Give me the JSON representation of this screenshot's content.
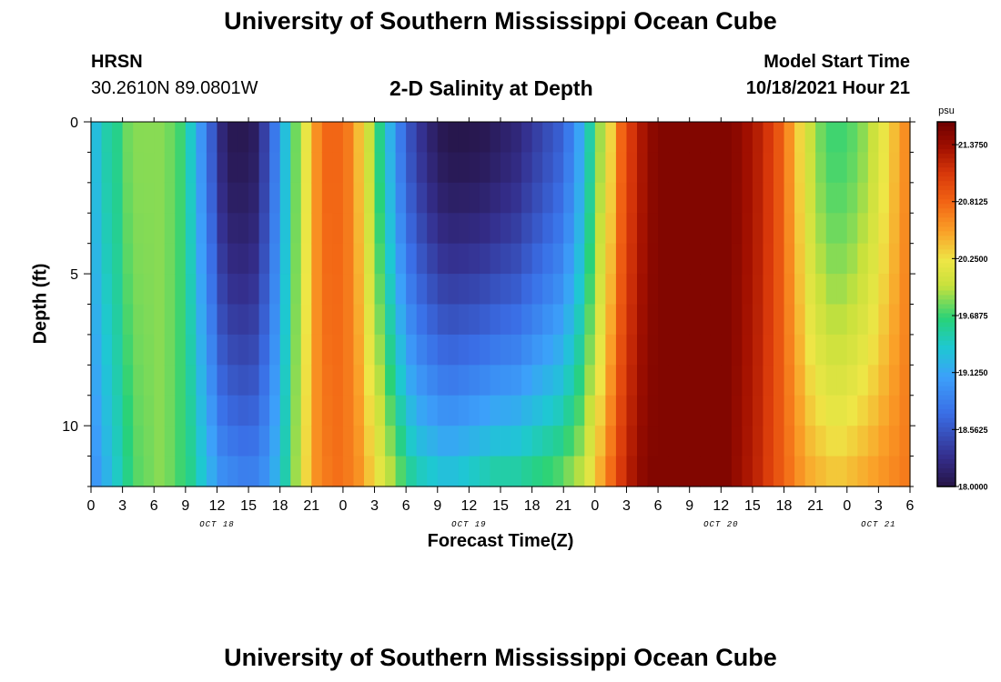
{
  "page": {
    "title": "University of Southern Mississippi Ocean Cube",
    "title_repeat": "University of Southern Mississippi Ocean Cube",
    "station": "HRSN",
    "coordinates": "30.2610N  89.0801W",
    "subtitle": "2-D Salinity at Depth",
    "model_start_label": "Model Start Time",
    "model_start_value": "10/18/2021 Hour 21"
  },
  "chart_data": {
    "type": "heatmap",
    "title": "2-D Salinity at Depth",
    "xlabel": "Forecast Time(Z)",
    "ylabel": "Depth (ft)",
    "x_ticks": [
      "0",
      "3",
      "6",
      "9",
      "12",
      "15",
      "18",
      "21",
      "0",
      "3",
      "6",
      "9",
      "12",
      "15",
      "18",
      "21",
      "0",
      "3",
      "6",
      "9",
      "12",
      "15",
      "18",
      "21",
      "0",
      "3",
      "6"
    ],
    "x_range_hours": [
      0,
      78
    ],
    "date_labels": [
      {
        "label": "OCT 18",
        "hour": 12
      },
      {
        "label": "OCT 19",
        "hour": 36
      },
      {
        "label": "OCT 20",
        "hour": 60
      },
      {
        "label": "OCT 21",
        "hour": 75
      }
    ],
    "y_ticks": [
      "0",
      "5",
      "10"
    ],
    "y_range_ft": [
      0,
      12
    ],
    "colorbar": {
      "unit": "psu",
      "min": 18.0,
      "max": 21.6,
      "tick_labels": [
        "21.3750",
        "20.8125",
        "20.2500",
        "19.6875",
        "19.1250",
        "18.5625",
        "18.0000"
      ],
      "tick_values": [
        21.375,
        20.8125,
        20.25,
        19.6875,
        19.125,
        18.5625,
        18.0
      ]
    },
    "profile": {
      "hours": [
        0,
        1,
        2,
        3,
        4,
        5,
        6,
        7,
        8,
        9,
        10,
        11,
        12,
        13,
        14,
        15,
        16,
        17,
        18,
        19,
        20,
        21,
        22,
        23,
        24,
        25,
        26,
        27,
        28,
        29,
        30,
        31,
        32,
        33,
        34,
        35,
        36,
        37,
        38,
        39,
        40,
        41,
        42,
        43,
        44,
        45,
        46,
        47,
        48,
        49,
        50,
        51,
        52,
        53,
        54,
        55,
        56,
        57,
        58,
        59,
        60,
        61,
        62,
        63,
        64,
        65,
        66,
        67,
        68,
        69,
        70,
        71,
        72,
        73,
        74,
        75,
        76,
        77,
        78
      ],
      "surface_psu": [
        19.3,
        19.5,
        19.6,
        19.8,
        19.85,
        19.85,
        19.85,
        19.8,
        19.7,
        19.4,
        19.0,
        18.6,
        18.2,
        18.05,
        18.05,
        18.1,
        18.4,
        18.8,
        19.3,
        19.8,
        20.2,
        20.6,
        20.8,
        20.8,
        20.7,
        20.4,
        20.0,
        19.6,
        19.2,
        18.8,
        18.5,
        18.3,
        18.15,
        18.05,
        18.02,
        18.02,
        18.03,
        18.05,
        18.1,
        18.15,
        18.2,
        18.3,
        18.4,
        18.5,
        18.6,
        18.8,
        19.1,
        19.5,
        19.9,
        20.3,
        20.8,
        21.1,
        21.3,
        21.45,
        21.5,
        21.5,
        21.5,
        21.5,
        21.5,
        21.5,
        21.5,
        21.45,
        21.35,
        21.25,
        21.1,
        20.9,
        20.6,
        20.3,
        20.0,
        19.8,
        19.7,
        19.7,
        19.75,
        19.85,
        20.0,
        20.2,
        20.4,
        20.6,
        20.7
      ],
      "bottom_psu": [
        19.0,
        19.2,
        19.4,
        19.6,
        19.75,
        19.8,
        19.85,
        19.8,
        19.7,
        19.6,
        19.4,
        19.2,
        19.0,
        18.95,
        18.9,
        18.9,
        19.0,
        19.2,
        19.5,
        19.9,
        20.3,
        20.6,
        20.7,
        20.75,
        20.7,
        20.6,
        20.4,
        20.2,
        20.0,
        19.8,
        19.6,
        19.5,
        19.45,
        19.4,
        19.4,
        19.45,
        19.5,
        19.55,
        19.6,
        19.6,
        19.6,
        19.65,
        19.7,
        19.75,
        19.8,
        19.9,
        20.0,
        20.2,
        20.5,
        20.8,
        21.1,
        21.3,
        21.45,
        21.5,
        21.5,
        21.5,
        21.5,
        21.5,
        21.5,
        21.5,
        21.5,
        21.4,
        21.3,
        21.2,
        21.05,
        20.9,
        20.75,
        20.6,
        20.5,
        20.45,
        20.4,
        20.4,
        20.45,
        20.5,
        20.55,
        20.6,
        20.65,
        20.7,
        20.7
      ]
    }
  }
}
